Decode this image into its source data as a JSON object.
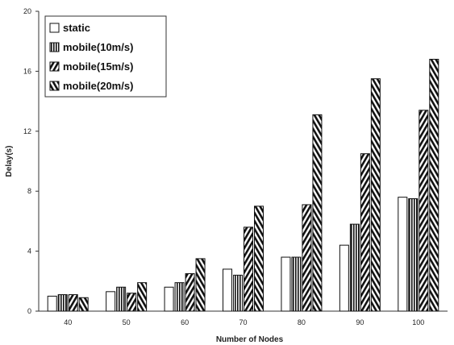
{
  "chart_data": {
    "type": "bar",
    "title": "",
    "xlabel": "Number of Nodes",
    "ylabel": "Delay(s)",
    "categories": [
      "40",
      "50",
      "60",
      "70",
      "80",
      "90",
      "100"
    ],
    "ylim": [
      0,
      20
    ],
    "yticks": [
      "0",
      "4",
      "8",
      "12",
      "16",
      "20"
    ],
    "grid": false,
    "legend_position": "top-left",
    "series": [
      {
        "name": "static",
        "pattern": "plain",
        "values": [
          1.0,
          1.3,
          1.6,
          2.8,
          3.6,
          4.4,
          7.6
        ]
      },
      {
        "name": "mobile(10m/s)",
        "pattern": "vertical",
        "values": [
          1.1,
          1.6,
          1.9,
          2.4,
          3.6,
          5.8,
          7.5
        ]
      },
      {
        "name": "mobile(15m/s)",
        "pattern": "diagonal",
        "values": [
          1.1,
          1.2,
          2.5,
          5.6,
          7.1,
          10.5,
          13.4
        ]
      },
      {
        "name": "mobile(20m/s)",
        "pattern": "backdiagonal",
        "values": [
          0.9,
          1.9,
          3.5,
          7.0,
          13.1,
          15.5,
          16.8
        ]
      }
    ]
  }
}
